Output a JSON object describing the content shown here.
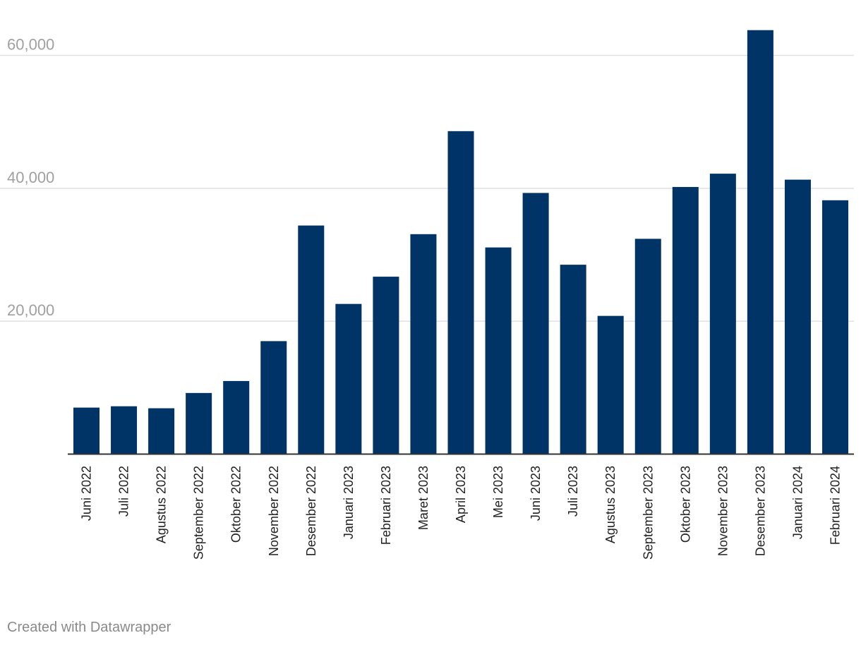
{
  "chart_data": {
    "type": "bar",
    "title": "",
    "xlabel": "",
    "ylabel": "",
    "categories": [
      "Juni 2022",
      "Juli 2022",
      "Agustus 2022",
      "September 2022",
      "Oktober 2022",
      "November 2022",
      "Desember 2022",
      "Januari 2023",
      "Februari 2023",
      "Maret 2023",
      "April 2023",
      "Mei 2023",
      "Juni 2023",
      "Juli 2023",
      "Agustus 2023",
      "September 2023",
      "Oktober 2023",
      "November 2023",
      "Desember 2023",
      "Januari 2024",
      "Februari 2024"
    ],
    "values": [
      7000,
      7200,
      6900,
      9200,
      11000,
      17000,
      34400,
      22600,
      26700,
      33100,
      48600,
      31100,
      39300,
      28500,
      20800,
      32400,
      40200,
      42200,
      63800,
      41300,
      38200
    ],
    "ylim": [
      0,
      67000
    ],
    "yticks": [
      {
        "value": 20000,
        "label": "20,000"
      },
      {
        "value": 40000,
        "label": "40,000"
      },
      {
        "value": 60000,
        "label": "60,000"
      }
    ],
    "grid": true,
    "bar_color": "#003366",
    "grid_color": "#e0e0e0",
    "axis_color": "#333333"
  },
  "footer": {
    "credit": "Created with Datawrapper"
  }
}
